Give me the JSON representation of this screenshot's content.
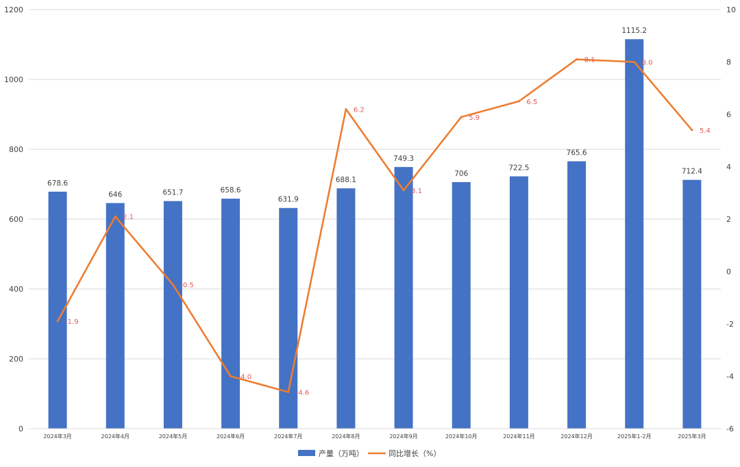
{
  "chart_data": {
    "type": "bar",
    "categories": [
      "2024年3月",
      "2024年4月",
      "2024年5月",
      "2024年6月",
      "2024年7月",
      "2024年8月",
      "2024年9月",
      "2024年10月",
      "2024年11月",
      "2024年12月",
      "2025年1-2月",
      "2025年3月"
    ],
    "series": [
      {
        "name": "产量（万吨）",
        "type": "bar",
        "axis": "left",
        "color": "#4472c4",
        "values": [
          678.6,
          646,
          651.7,
          658.6,
          631.9,
          688.1,
          749.3,
          706,
          722.5,
          765.6,
          1115.2,
          712.4
        ],
        "labels": [
          "678.6",
          "646",
          "651.7",
          "658.6",
          "631.9",
          "688.1",
          "749.3",
          "706",
          "722.5",
          "765.6",
          "1115.2",
          "712.4"
        ]
      },
      {
        "name": "同比增长（%）",
        "type": "line",
        "axis": "right",
        "color": "#ed7d31",
        "values": [
          -1.9,
          2.1,
          -0.5,
          -4.0,
          -4.6,
          6.2,
          3.1,
          5.9,
          6.5,
          8.1,
          8.0,
          5.4
        ],
        "labels": [
          "-1.9",
          "2.1",
          "-0.5",
          "-4.0",
          "-4.6",
          "6.2",
          "3.1",
          "5.9",
          "6.5",
          "8.1",
          "8.0",
          "5.4"
        ]
      }
    ],
    "y_left": {
      "ylim": [
        0,
        1200
      ],
      "ticks": [
        "0",
        "200",
        "400",
        "600",
        "800",
        "1000",
        "1200"
      ]
    },
    "y_right": {
      "ylim": [
        -6,
        10
      ],
      "ticks": [
        "-6",
        "-4",
        "-2",
        "0",
        "2",
        "4",
        "6",
        "8",
        "10"
      ]
    },
    "grid": true,
    "legend": "bottom-center"
  }
}
